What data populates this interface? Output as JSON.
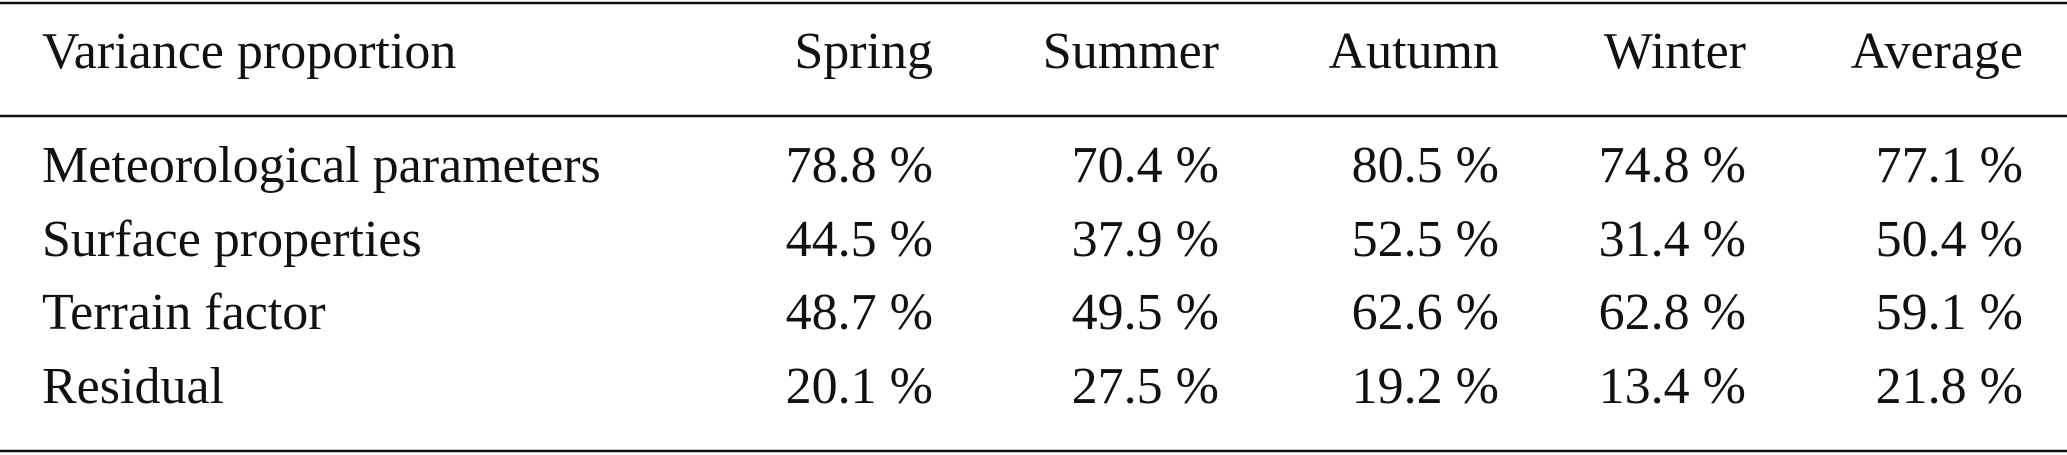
{
  "table": {
    "header": [
      "Variance proportion",
      "Spring",
      "Summer",
      "Autumn",
      "Winter",
      "Average"
    ],
    "rows": [
      [
        "Meteorological parameters",
        "78.8 %",
        "70.4 %",
        "80.5 %",
        "74.8 %",
        "77.1 %"
      ],
      [
        "Surface properties",
        "44.5 %",
        "37.9 %",
        "52.5 %",
        "31.4 %",
        "50.4 %"
      ],
      [
        "Terrain factor",
        "48.7 %",
        "49.5 %",
        "62.6 %",
        "62.8 %",
        "59.1 %"
      ],
      [
        "Residual",
        "20.1 %",
        "27.5 %",
        "19.2 %",
        "13.4 %",
        "21.8 %"
      ]
    ]
  }
}
